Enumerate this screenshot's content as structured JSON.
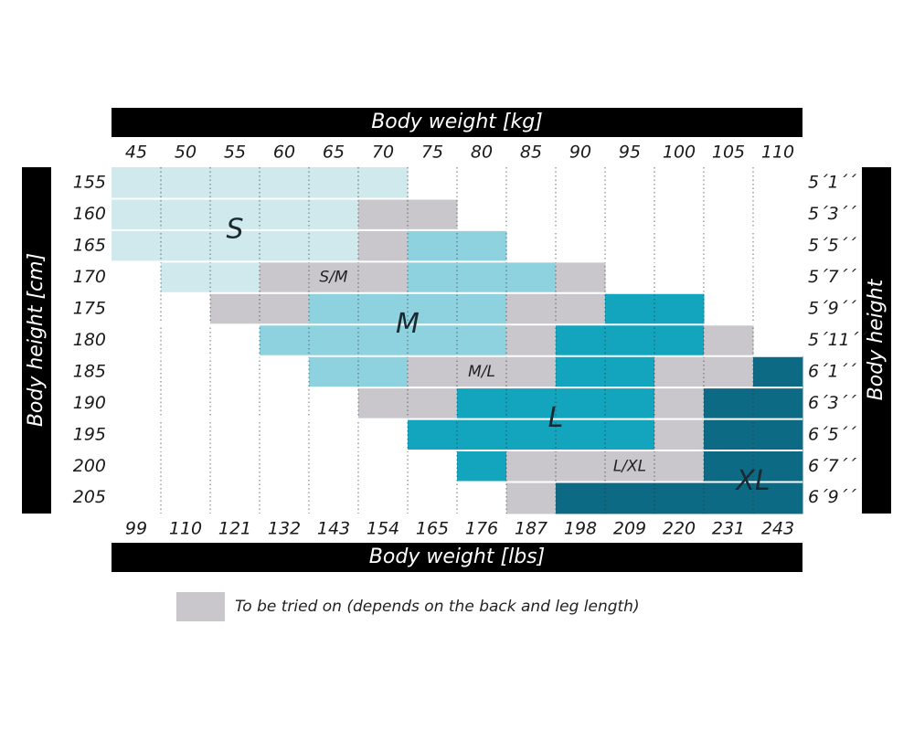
{
  "title_top": "Body weight [kg]",
  "title_bottom": "Body weight [lbs]",
  "title_left": "Body height [cm]",
  "title_right": "Body height",
  "kg": [
    "45",
    "50",
    "55",
    "60",
    "65",
    "70",
    "75",
    "80",
    "85",
    "90",
    "95",
    "100",
    "105",
    "110"
  ],
  "lbs": [
    "99",
    "110",
    "121",
    "132",
    "143",
    "154",
    "165",
    "176",
    "187",
    "198",
    "209",
    "220",
    "231",
    "243"
  ],
  "cm": [
    "155",
    "160",
    "165",
    "170",
    "175",
    "180",
    "185",
    "190",
    "195",
    "200",
    "205"
  ],
  "ft": [
    "5´1´´",
    "5´3´´",
    "5´5´´",
    "5´7´´",
    "5´9´´",
    "5´11´´",
    "6´1´´",
    "6´3´´",
    "6´5´´",
    "6´7´´",
    "6´9´´"
  ],
  "fills": {
    "S": "#cfe9ed",
    "M": "#8fd2df",
    "L": "#13a4be",
    "XL": "#0c6a84",
    "G": "#c9c7cc"
  },
  "grid": [
    [
      "S",
      "S",
      "S",
      "S",
      "S",
      "S",
      "",
      "",
      "",
      "",
      "",
      "",
      "",
      ""
    ],
    [
      "S",
      "S",
      "S",
      "S",
      "S",
      "G",
      "G",
      "",
      "",
      "",
      "",
      "",
      "",
      ""
    ],
    [
      "S",
      "S",
      "S",
      "S",
      "S",
      "G",
      "M",
      "M",
      "",
      "",
      "",
      "",
      "",
      ""
    ],
    [
      "",
      "S",
      "S",
      "G",
      "G",
      "G",
      "M",
      "M",
      "M",
      "G",
      "",
      "",
      "",
      ""
    ],
    [
      "",
      "",
      "G",
      "G",
      "M",
      "M",
      "M",
      "M",
      "G",
      "G",
      "L",
      "L",
      "",
      ""
    ],
    [
      "",
      "",
      "",
      "M",
      "M",
      "M",
      "M",
      "M",
      "G",
      "L",
      "L",
      "L",
      "G",
      ""
    ],
    [
      "",
      "",
      "",
      "",
      "M",
      "M",
      "G",
      "G",
      "G",
      "L",
      "L",
      "G",
      "G",
      "XL"
    ],
    [
      "",
      "",
      "",
      "",
      "",
      "G",
      "G",
      "L",
      "L",
      "L",
      "L",
      "G",
      "XL",
      "XL"
    ],
    [
      "",
      "",
      "",
      "",
      "",
      "",
      "L",
      "L",
      "L",
      "L",
      "L",
      "G",
      "XL",
      "XL"
    ],
    [
      "",
      "",
      "",
      "",
      "",
      "",
      "",
      "L",
      "G",
      "G",
      "G",
      "G",
      "XL",
      "XL"
    ],
    [
      "",
      "",
      "",
      "",
      "",
      "",
      "",
      "",
      "G",
      "XL",
      "XL",
      "XL",
      "XL",
      "XL"
    ]
  ],
  "labels": [
    {
      "text": "S",
      "col": 2.5,
      "row": 2.0,
      "big": true
    },
    {
      "text": "M",
      "col": 6.0,
      "row": 5.0,
      "big": true
    },
    {
      "text": "L",
      "col": 9.0,
      "row": 8.0,
      "big": true
    },
    {
      "text": "XL",
      "col": 13.0,
      "row": 10.0,
      "big": true
    },
    {
      "text": "S/M",
      "col": 4.5,
      "row": 3.5,
      "big": false
    },
    {
      "text": "M/L",
      "col": 7.5,
      "row": 6.5,
      "big": false
    },
    {
      "text": "L/XL",
      "col": 10.5,
      "row": 9.5,
      "big": false
    }
  ],
  "legend": {
    "text": "To be tried on (depends on the back and leg length)",
    "fill": "G"
  }
}
